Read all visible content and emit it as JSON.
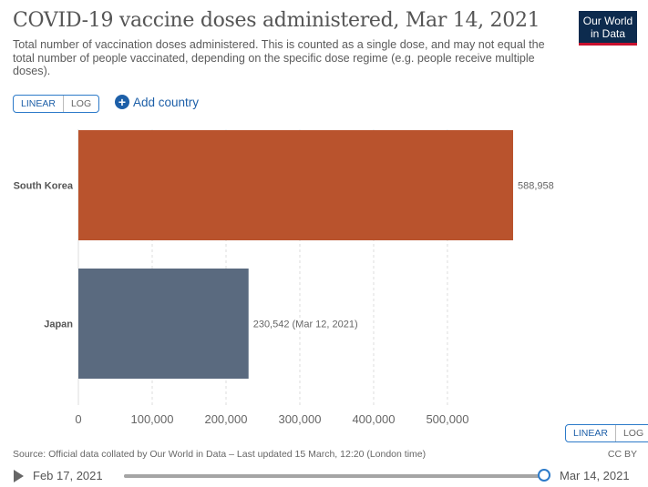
{
  "header": {
    "title": "COVID-19 vaccine doses administered, Mar 14, 2021",
    "subtitle": "Total number of vaccination doses administered. This is counted as a single dose, and may not equal the total number of people vaccinated, depending on the specific dose regime (e.g. people receive multiple doses).",
    "logo_line1": "Our World",
    "logo_line2": "in Data"
  },
  "controls": {
    "scale_linear": "LINEAR",
    "scale_log": "LOG",
    "add_country": "Add country"
  },
  "footer": {
    "source": "Source: Official data collated by Our World in Data – Last updated 15 March, 12:20 (London time)",
    "license": "CC BY"
  },
  "timeline": {
    "start": "Feb 17, 2021",
    "end": "Mar 14, 2021",
    "progress": 1.0
  },
  "colors": {
    "south_korea": "#b9532d",
    "japan": "#5a6a7f",
    "accent": "#2c7ac9"
  },
  "chart_data": {
    "type": "bar",
    "orientation": "horizontal",
    "categories": [
      "South Korea",
      "Japan"
    ],
    "values": [
      588958,
      230542
    ],
    "value_labels": [
      "588,958",
      "230,542 (Mar 12, 2021)"
    ],
    "xlim": [
      0,
      588958
    ],
    "xticks": [
      0,
      100000,
      200000,
      300000,
      400000,
      500000
    ],
    "xtick_labels": [
      "0",
      "100,000",
      "200,000",
      "300,000",
      "400,000",
      "500,000"
    ],
    "grid": "vertical-dashed"
  }
}
